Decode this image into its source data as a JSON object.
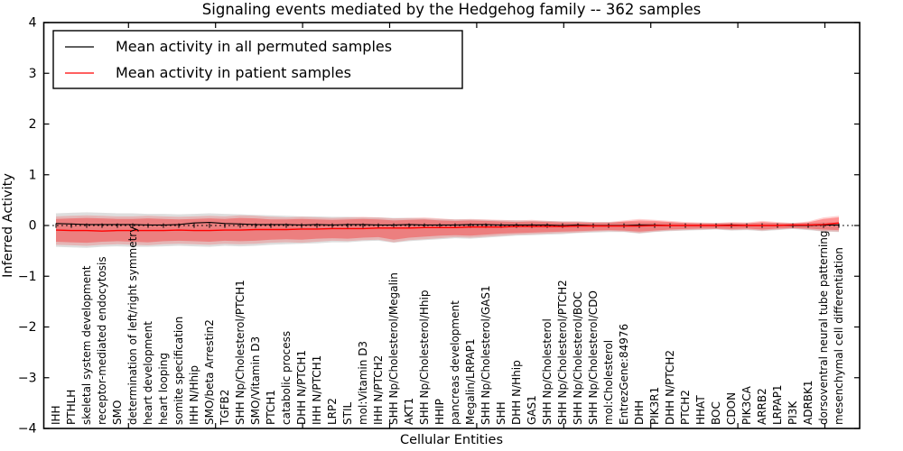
{
  "page": {
    "background": "#ffffff"
  },
  "chart_data": {
    "type": "line",
    "title": "Signaling events mediated by the Hedgehog family -- 362 samples",
    "xlabel": "Cellular Entities",
    "ylabel": "Inferred Activity",
    "ylim": [
      -4,
      4
    ],
    "y_ticks": [
      -4,
      -3,
      -2,
      -1,
      0,
      1,
      2,
      3,
      4
    ],
    "y_tick_labels": [
      "−4",
      "−3",
      "−2",
      "−1",
      "0",
      "1",
      "2",
      "3",
      "4"
    ],
    "grid": false,
    "legend_position": "upper left",
    "zero_line": {
      "value": 0,
      "style": "black dotted with per-entity tick markers"
    },
    "categories": [
      "IHH",
      "PTHLH",
      "skeletal system development",
      "receptor-mediated endocytosis",
      "SMO",
      "determination of left/right symmetry",
      "heart development",
      "heart looping",
      "somite specification",
      "IHH N/Hhip",
      "SMO/beta Arrestin2",
      "TGFB2",
      "SHH Np/Cholesterol/PTCH1",
      "SMO/Vitamin D3",
      "PTCH1",
      "catabolic process",
      "DHH N/PTCH1",
      "IHH N/PTCH1",
      "LRP2",
      "STIL",
      "mol:Vitamin D3",
      "IHH N/PTCH2",
      "SHH Np/Cholesterol/Megalin",
      "AKT1",
      "SHH Np/Cholesterol/Hhip",
      "HHIP",
      "pancreas development",
      "Megalin/LRPAP1",
      "SHH Np/Cholesterol/GAS1",
      "SHH",
      "DHH N/Hhip",
      "GAS1",
      "SHH Np/Cholesterol",
      "SHH Np/Cholesterol/PTCH2",
      "SHH Np/Cholesterol/BOC",
      "SHH Np/Cholesterol/CDO",
      "mol:Cholesterol",
      "EntrezGene:84976",
      "DHH",
      "PIK3R1",
      "DHH N/PTCH2",
      "PTCH2",
      "HHAT",
      "BOC",
      "CDON",
      "PIK3CA",
      "ARRB2",
      "LRPAP1",
      "PI3K",
      "ADRBK1",
      "dorsoventral neural tube patterning",
      "mesenchymal cell differentiation"
    ],
    "series": [
      {
        "name": "Mean activity in all permuted samples",
        "color": "#000000",
        "values": [
          0.04,
          0.03,
          0.02,
          0.02,
          0.02,
          0.02,
          0.01,
          0.01,
          0.02,
          0.05,
          0.06,
          0.04,
          0.03,
          0.02,
          0.02,
          0.02,
          0.01,
          0.02,
          0.01,
          0.02,
          0.02,
          0.01,
          0.01,
          0.02,
          0.01,
          0.01,
          0.01,
          0.02,
          0.02,
          0.01,
          0.01,
          0.01,
          0.01,
          0.0,
          0.01,
          0.0,
          0.0,
          0.0,
          0.01,
          0.01,
          0.0,
          0.0,
          0.0,
          0.0,
          0.01,
          0.0,
          0.0,
          0.0,
          0.0,
          0.0,
          0.01,
          0.01
        ]
      },
      {
        "name": "Mean activity in patient samples",
        "color": "#ff0000",
        "values": [
          -0.09,
          -0.1,
          -0.1,
          -0.11,
          -0.1,
          -0.1,
          -0.1,
          -0.1,
          -0.09,
          -0.1,
          -0.1,
          -0.09,
          -0.09,
          -0.08,
          -0.08,
          -0.08,
          -0.07,
          -0.07,
          -0.06,
          -0.06,
          -0.06,
          -0.05,
          -0.05,
          -0.05,
          -0.04,
          -0.04,
          -0.04,
          -0.03,
          -0.03,
          -0.03,
          -0.02,
          -0.02,
          -0.02,
          -0.02,
          -0.01,
          -0.01,
          -0.01,
          -0.01,
          -0.01,
          0.0,
          0.0,
          0.0,
          0.0,
          0.0,
          0.0,
          0.0,
          0.0,
          0.0,
          0.01,
          0.01,
          0.02,
          0.05
        ]
      }
    ],
    "bands": [
      {
        "name": "permuted-samples-std-band",
        "color": "#888888",
        "opacity": 0.28,
        "upper": [
          0.24,
          0.25,
          0.26,
          0.25,
          0.24,
          0.24,
          0.23,
          0.23,
          0.22,
          0.23,
          0.24,
          0.23,
          0.22,
          0.21,
          0.2,
          0.19,
          0.18,
          0.18,
          0.17,
          0.17,
          0.16,
          0.16,
          0.15,
          0.15,
          0.14,
          0.13,
          0.12,
          0.12,
          0.11,
          0.1,
          0.1,
          0.09,
          0.09,
          0.08,
          0.08,
          0.07,
          0.07,
          0.07,
          0.06,
          0.06,
          0.06,
          0.05,
          0.05,
          0.05,
          0.05,
          0.05,
          0.05,
          0.05,
          0.05,
          0.05,
          0.06,
          0.06
        ],
        "lower": [
          -0.42,
          -0.43,
          -0.44,
          -0.42,
          -0.41,
          -0.42,
          -0.42,
          -0.41,
          -0.4,
          -0.41,
          -0.42,
          -0.4,
          -0.41,
          -0.4,
          -0.38,
          -0.37,
          -0.36,
          -0.35,
          -0.33,
          -0.33,
          -0.31,
          -0.3,
          -0.34,
          -0.31,
          -0.29,
          -0.27,
          -0.25,
          -0.26,
          -0.24,
          -0.22,
          -0.2,
          -0.19,
          -0.18,
          -0.17,
          -0.15,
          -0.14,
          -0.13,
          -0.13,
          -0.16,
          -0.13,
          -0.11,
          -0.1,
          -0.09,
          -0.08,
          -0.1,
          -0.09,
          -0.11,
          -0.09,
          -0.07,
          -0.09,
          -0.12,
          -0.13
        ]
      },
      {
        "name": "patient-samples-std-outer-band",
        "color": "#ff0000",
        "opacity": 0.18,
        "upper": [
          0.18,
          0.19,
          0.2,
          0.19,
          0.18,
          0.18,
          0.19,
          0.18,
          0.17,
          0.18,
          0.19,
          0.18,
          0.2,
          0.19,
          0.17,
          0.16,
          0.17,
          0.16,
          0.15,
          0.16,
          0.17,
          0.16,
          0.14,
          0.15,
          0.16,
          0.14,
          0.12,
          0.13,
          0.12,
          0.11,
          0.1,
          0.11,
          0.09,
          0.08,
          0.08,
          0.07,
          0.07,
          0.1,
          0.13,
          0.11,
          0.09,
          0.07,
          0.06,
          0.05,
          0.07,
          0.06,
          0.09,
          0.07,
          0.05,
          0.08,
          0.16,
          0.19
        ],
        "lower": [
          -0.38,
          -0.39,
          -0.4,
          -0.38,
          -0.37,
          -0.38,
          -0.39,
          -0.37,
          -0.36,
          -0.37,
          -0.38,
          -0.36,
          -0.37,
          -0.36,
          -0.34,
          -0.33,
          -0.34,
          -0.32,
          -0.3,
          -0.31,
          -0.29,
          -0.28,
          -0.33,
          -0.29,
          -0.27,
          -0.25,
          -0.23,
          -0.24,
          -0.22,
          -0.2,
          -0.18,
          -0.17,
          -0.16,
          -0.15,
          -0.14,
          -0.12,
          -0.11,
          -0.12,
          -0.15,
          -0.12,
          -0.1,
          -0.09,
          -0.08,
          -0.07,
          -0.09,
          -0.08,
          -0.1,
          -0.08,
          -0.06,
          -0.08,
          -0.11,
          -0.12
        ]
      },
      {
        "name": "patient-samples-std-inner-band",
        "color": "#ff0000",
        "opacity": 0.3,
        "upper": [
          0.13,
          0.14,
          0.15,
          0.14,
          0.13,
          0.13,
          0.14,
          0.13,
          0.12,
          0.13,
          0.14,
          0.13,
          0.15,
          0.14,
          0.12,
          0.12,
          0.13,
          0.12,
          0.11,
          0.12,
          0.13,
          0.12,
          0.1,
          0.11,
          0.12,
          0.1,
          0.09,
          0.1,
          0.09,
          0.08,
          0.07,
          0.08,
          0.07,
          0.06,
          0.06,
          0.05,
          0.05,
          0.08,
          0.1,
          0.09,
          0.07,
          0.05,
          0.04,
          0.04,
          0.05,
          0.04,
          0.07,
          0.05,
          0.04,
          0.06,
          0.13,
          0.16
        ],
        "lower": [
          -0.32,
          -0.33,
          -0.34,
          -0.32,
          -0.31,
          -0.32,
          -0.33,
          -0.31,
          -0.3,
          -0.31,
          -0.32,
          -0.3,
          -0.31,
          -0.3,
          -0.28,
          -0.27,
          -0.28,
          -0.26,
          -0.25,
          -0.26,
          -0.24,
          -0.23,
          -0.28,
          -0.24,
          -0.22,
          -0.2,
          -0.19,
          -0.2,
          -0.18,
          -0.16,
          -0.15,
          -0.14,
          -0.13,
          -0.12,
          -0.11,
          -0.1,
          -0.09,
          -0.1,
          -0.12,
          -0.1,
          -0.08,
          -0.07,
          -0.06,
          -0.06,
          -0.07,
          -0.06,
          -0.08,
          -0.06,
          -0.05,
          -0.06,
          -0.08,
          -0.09
        ]
      }
    ]
  }
}
